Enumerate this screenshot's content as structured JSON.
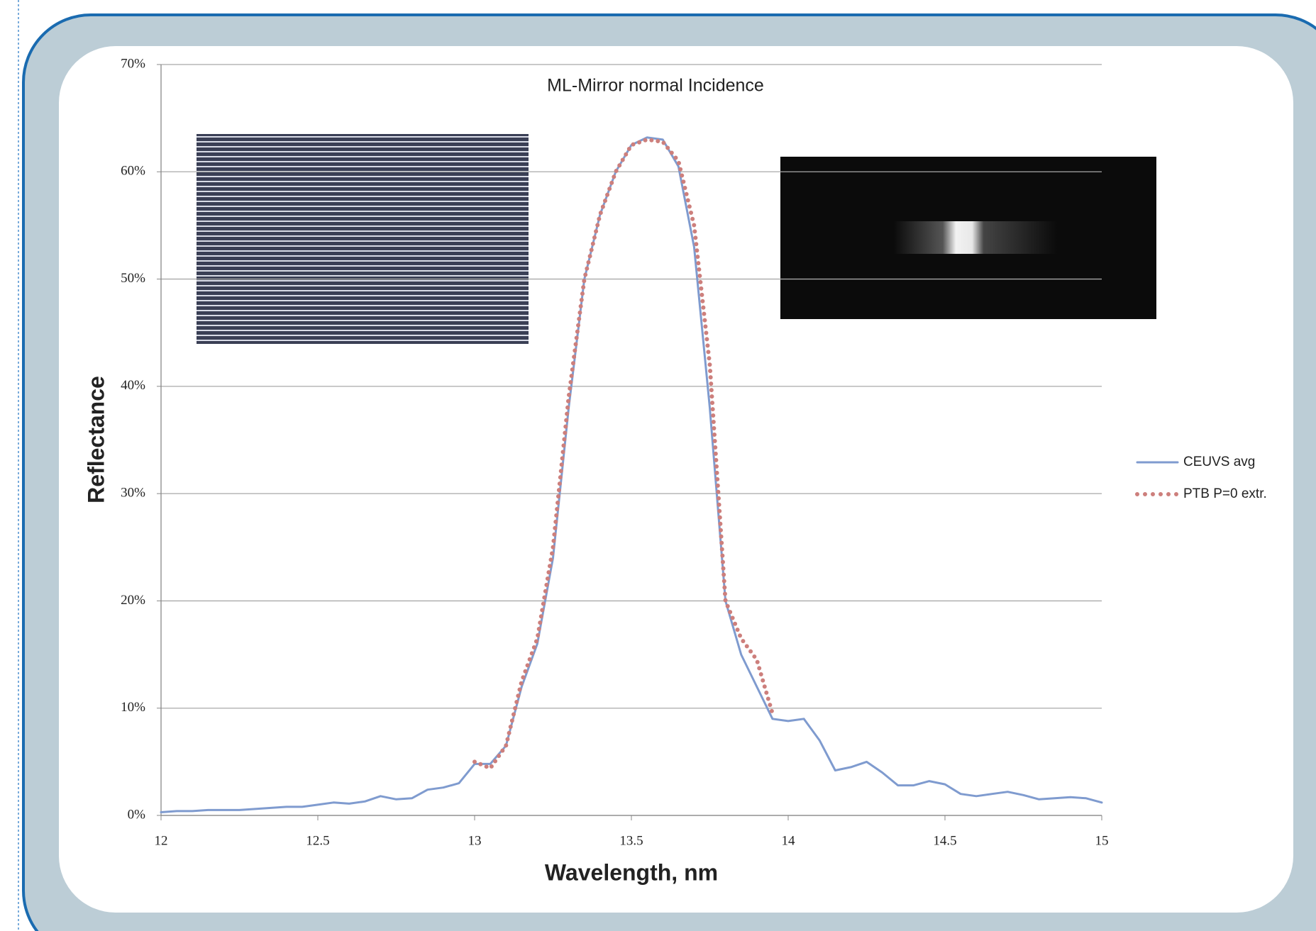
{
  "chart_data": {
    "type": "line",
    "title": "ML-Mirror normal Incidence",
    "x_label": "Wavelength, nm",
    "y_label": "Reflectance",
    "x": [
      12.0,
      12.05,
      12.1,
      12.15,
      12.2,
      12.25,
      12.3,
      12.35,
      12.4,
      12.45,
      12.5,
      12.55,
      12.6,
      12.65,
      12.7,
      12.75,
      12.8,
      12.85,
      12.9,
      12.95,
      13.0,
      13.05,
      13.1,
      13.15,
      13.2,
      13.25,
      13.3,
      13.35,
      13.4,
      13.45,
      13.5,
      13.55,
      13.6,
      13.65,
      13.7,
      13.75,
      13.8,
      13.85,
      13.9,
      13.95,
      14.0,
      14.05,
      14.1,
      14.15,
      14.2,
      14.25,
      14.3,
      14.35,
      14.4,
      14.45,
      14.5,
      14.55,
      14.6,
      14.65,
      14.7,
      14.75,
      14.8,
      14.85,
      14.9,
      14.95,
      15.0
    ],
    "series": [
      {
        "name": "CEUVS avg",
        "color": "#7f9bcf",
        "style": "solid",
        "values": [
          0.3,
          0.4,
          0.4,
          0.5,
          0.5,
          0.5,
          0.6,
          0.7,
          0.8,
          0.8,
          1.0,
          1.2,
          1.1,
          1.3,
          1.8,
          1.5,
          1.6,
          2.4,
          2.6,
          3.0,
          4.8,
          4.8,
          6.5,
          12,
          16,
          24,
          38,
          50,
          56,
          60,
          62.5,
          63.2,
          63,
          60.5,
          53,
          38,
          20,
          15,
          12,
          9,
          8.8,
          9.0,
          7,
          4.2,
          4.5,
          5.0,
          4.0,
          2.8,
          2.8,
          3.2,
          2.9,
          2.0,
          1.8,
          2.0,
          2.2,
          1.9,
          1.5,
          1.6,
          1.7,
          1.6,
          1.2
        ]
      },
      {
        "name": "PTB P=0 extr.",
        "color": "#cd7f7c",
        "style": "dotted",
        "values": [
          null,
          null,
          null,
          null,
          null,
          null,
          null,
          null,
          null,
          null,
          null,
          null,
          null,
          null,
          null,
          null,
          null,
          null,
          null,
          null,
          5.0,
          4.4,
          6.5,
          12.5,
          16.5,
          25,
          39,
          50,
          56,
          60,
          62.5,
          63,
          62.8,
          61,
          55,
          42,
          20,
          16.5,
          14.5,
          9.5,
          null,
          null,
          null,
          null,
          null,
          null,
          null,
          null,
          null,
          null,
          null,
          null,
          null,
          null,
          null,
          null,
          null,
          null,
          null,
          null,
          null
        ]
      }
    ],
    "xlim": [
      12,
      15
    ],
    "xticks": [
      12,
      12.5,
      13,
      13.5,
      14,
      14.5,
      15
    ],
    "ylim": [
      0,
      70
    ],
    "yticks": [
      {
        "value": 0,
        "label": "0%"
      },
      {
        "value": 10,
        "label": "10%"
      },
      {
        "value": 20,
        "label": "20%"
      },
      {
        "value": 30,
        "label": "30%"
      },
      {
        "value": 40,
        "label": "40%"
      },
      {
        "value": 50,
        "label": "50%"
      },
      {
        "value": 60,
        "label": "60%"
      },
      {
        "value": 70,
        "label": "70%"
      }
    ],
    "grid": true,
    "legend": "right"
  }
}
